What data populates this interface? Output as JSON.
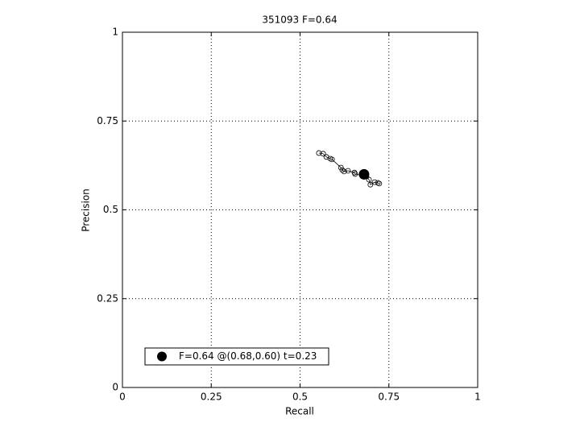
{
  "chart_data": {
    "type": "scatter",
    "title": "351093 F=0.64",
    "xlabel": "Recall",
    "ylabel": "Precision",
    "xlim": [
      0,
      1
    ],
    "ylim": [
      0,
      1
    ],
    "xticks": [
      0,
      0.25,
      0.5,
      0.75,
      1
    ],
    "yticks": [
      0,
      0.25,
      0.5,
      0.75,
      1
    ],
    "grid": true,
    "legend": "lower left",
    "series": [
      {
        "color": "#000000",
        "marker": "open-circle",
        "line": true,
        "x": [
          0.553,
          0.565,
          0.574,
          0.585,
          0.59,
          0.615,
          0.619,
          0.624,
          0.635,
          0.653,
          0.655,
          0.687,
          0.694,
          0.698,
          0.71,
          0.719,
          0.723
        ],
        "values": [
          0.66,
          0.658,
          0.649,
          0.644,
          0.642,
          0.619,
          0.612,
          0.608,
          0.61,
          0.605,
          0.601,
          0.594,
          0.585,
          0.571,
          0.578,
          0.576,
          0.574
        ]
      },
      {
        "name": "F=0.64 @(0.68,0.60) t=0.23",
        "color": "#000000",
        "marker": "filled-circle",
        "line": false,
        "x": [
          0.68
        ],
        "values": [
          0.6
        ]
      }
    ]
  }
}
